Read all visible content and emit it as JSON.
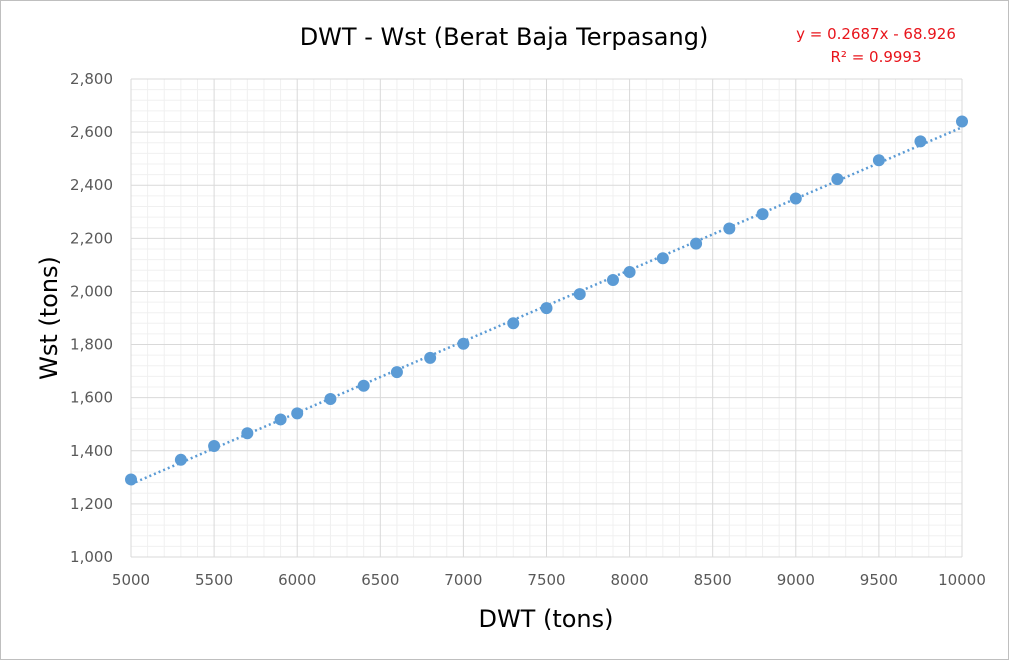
{
  "chart_data": {
    "type": "scatter",
    "title": "DWT - Wst (Berat Baja Terpasang)",
    "xlabel": "DWT (tons)",
    "ylabel": "Wst (tons)",
    "xlim": [
      5000,
      10000
    ],
    "ylim": [
      1000,
      2800
    ],
    "x_ticks": [
      "5000",
      "5500",
      "6000",
      "6500",
      "7000",
      "7500",
      "8000",
      "8500",
      "9000",
      "9500",
      "10000"
    ],
    "y_ticks": [
      "1,000",
      "1,200",
      "1,400",
      "1,600",
      "1,800",
      "2,000",
      "2,200",
      "2,400",
      "2,600",
      "2,800"
    ],
    "grid": true,
    "series": [
      {
        "x": [
          5000,
          5300,
          5500,
          5700,
          5900,
          6000,
          6200,
          6400,
          6600,
          6800,
          7000,
          7300,
          7500,
          7700,
          7900,
          8000,
          8200,
          8400,
          8600,
          8800,
          9000,
          9250,
          9500,
          9750,
          10000
        ],
        "y": [
          1292,
          1366,
          1418,
          1466,
          1518,
          1541,
          1595,
          1645,
          1696,
          1750,
          1803,
          1880,
          1937,
          1990,
          2043,
          2073,
          2125,
          2180,
          2237,
          2291,
          2350,
          2423,
          2494,
          2565,
          2640
        ]
      }
    ],
    "trendline": {
      "type": "linear",
      "slope": 0.2687,
      "intercept": -68.926,
      "equation": "y = 0.2687x - 68.926",
      "r_squared_label": "R² = 0.9993"
    },
    "colors": {
      "marker": "#5b9bd5",
      "trendline": "#5b9bd5",
      "annotation": "#e8141b",
      "major_grid": "#d9d9d9",
      "minor_grid": "#f0f0f0",
      "tick_text": "#595959"
    }
  }
}
